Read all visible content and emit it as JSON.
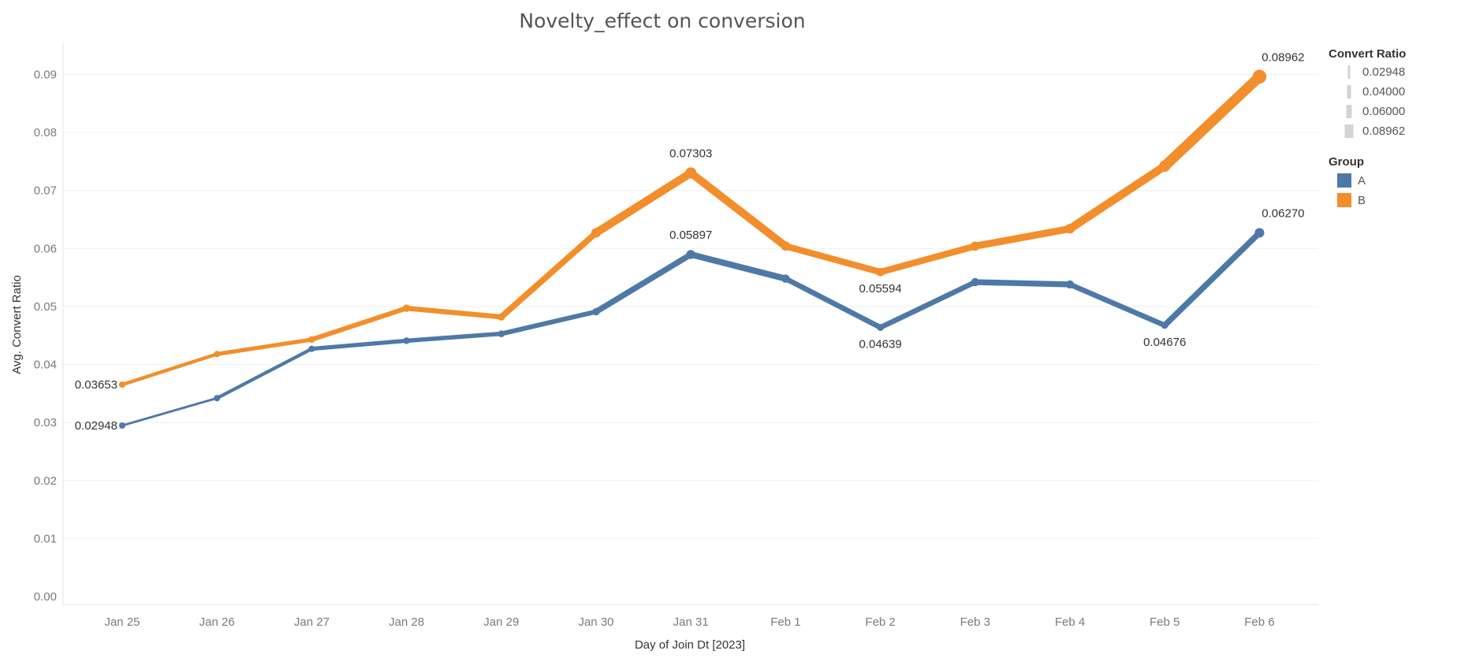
{
  "chart_data": {
    "type": "line",
    "title": "Novelty_effect on conversion",
    "xlabel": "Day of Join Dt [2023]",
    "ylabel": "Avg. Convert Ratio",
    "ylim": [
      0,
      0.095
    ],
    "yticks": [
      "0.00",
      "0.01",
      "0.02",
      "0.03",
      "0.04",
      "0.05",
      "0.06",
      "0.07",
      "0.08",
      "0.09"
    ],
    "categories": [
      "Jan 25",
      "Jan 26",
      "Jan 27",
      "Jan 28",
      "Jan 29",
      "Jan 30",
      "Jan 31",
      "Feb 1",
      "Feb 2",
      "Feb 3",
      "Feb 4",
      "Feb 5",
      "Feb 6"
    ],
    "grid": "horizontal",
    "legend_position": "right",
    "series": [
      {
        "name": "A",
        "color": "#4e79a7",
        "values": [
          0.02948,
          0.0342,
          0.0427,
          0.0441,
          0.0453,
          0.0491,
          0.05897,
          0.0548,
          0.04639,
          0.0542,
          0.0538,
          0.04676,
          0.0627
        ]
      },
      {
        "name": "B",
        "color": "#f28e2b",
        "values": [
          0.03653,
          0.0418,
          0.0443,
          0.0497,
          0.0482,
          0.0627,
          0.07303,
          0.0604,
          0.05594,
          0.0604,
          0.0634,
          0.0742,
          0.08962
        ]
      }
    ],
    "data_labels": [
      {
        "series": 0,
        "index": 0,
        "text": "0.02948",
        "anchor": "left"
      },
      {
        "series": 1,
        "index": 0,
        "text": "0.03653",
        "anchor": "left"
      },
      {
        "series": 0,
        "index": 6,
        "text": "0.05897",
        "anchor": "above"
      },
      {
        "series": 1,
        "index": 6,
        "text": "0.07303",
        "anchor": "above"
      },
      {
        "series": 1,
        "index": 8,
        "text": "0.05594",
        "anchor": "below"
      },
      {
        "series": 0,
        "index": 8,
        "text": "0.04639",
        "anchor": "below"
      },
      {
        "series": 0,
        "index": 11,
        "text": "0.04676",
        "anchor": "below"
      },
      {
        "series": 0,
        "index": 12,
        "text": "0.06270",
        "anchor": "above-right"
      },
      {
        "series": 1,
        "index": 12,
        "text": "0.08962",
        "anchor": "above-right"
      }
    ],
    "size_legend": {
      "title": "Convert Ratio",
      "items": [
        "0.02948",
        "0.04000",
        "0.06000",
        "0.08962"
      ],
      "color": "#d3d3d3"
    },
    "color_legend": {
      "title": "Group",
      "items": [
        {
          "label": "A",
          "color": "#4e79a7"
        },
        {
          "label": "B",
          "color": "#f28e2b"
        }
      ]
    }
  }
}
